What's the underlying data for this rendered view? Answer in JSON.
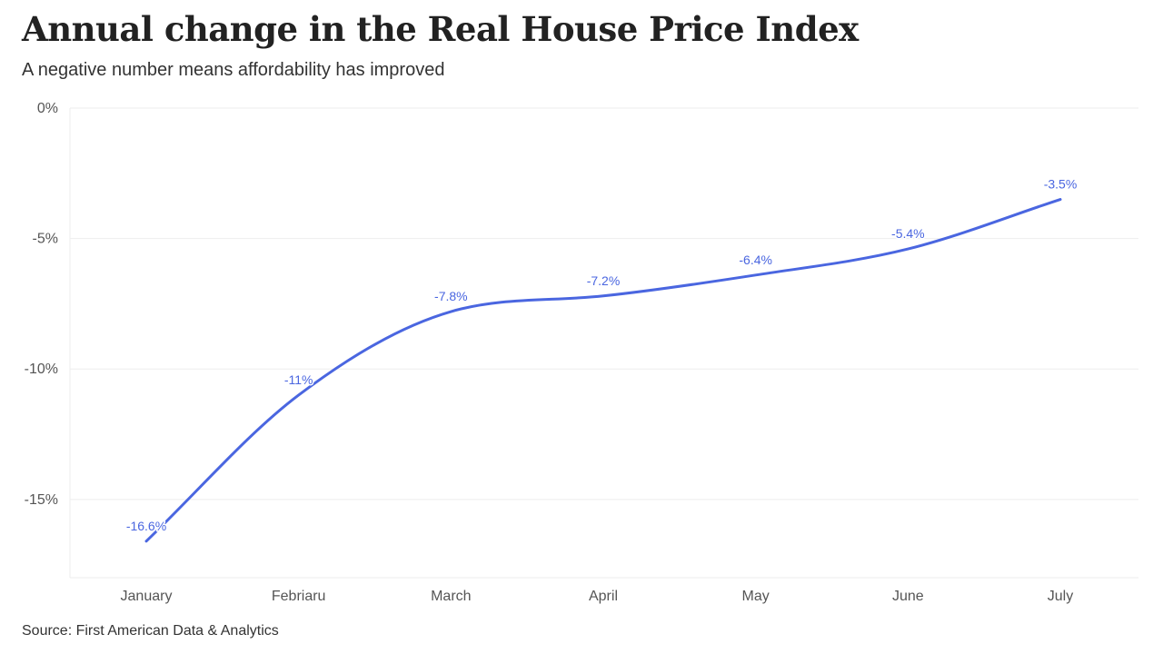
{
  "chart_data": {
    "type": "line",
    "title": "Annual change in the Real House Price Index",
    "subtitle": "A negative number means affordability has improved",
    "xlabel": "",
    "ylabel": "",
    "categories": [
      "January",
      "Febriaru",
      "March",
      "April",
      "May",
      "June",
      "July"
    ],
    "series": [
      {
        "values": [
          -16.6,
          -11,
          -7.8,
          -7.2,
          -6.4,
          -5.4,
          -3.5
        ],
        "labels": [
          "-16.6%",
          "-11%",
          "-7.8%",
          "-7.2%",
          "-6.4%",
          "-5.4%",
          "-3.5%"
        ]
      }
    ],
    "ylim": [
      -18,
      0
    ],
    "yticks": [
      0,
      -5,
      -10,
      -15
    ],
    "ytick_labels": [
      "0%",
      "-5%",
      "-10%",
      "-15%"
    ],
    "grid": true,
    "line_color": "#4a66e0",
    "gridline_color": "#eeeeee",
    "source": "Source: First American Data & Analytics"
  }
}
